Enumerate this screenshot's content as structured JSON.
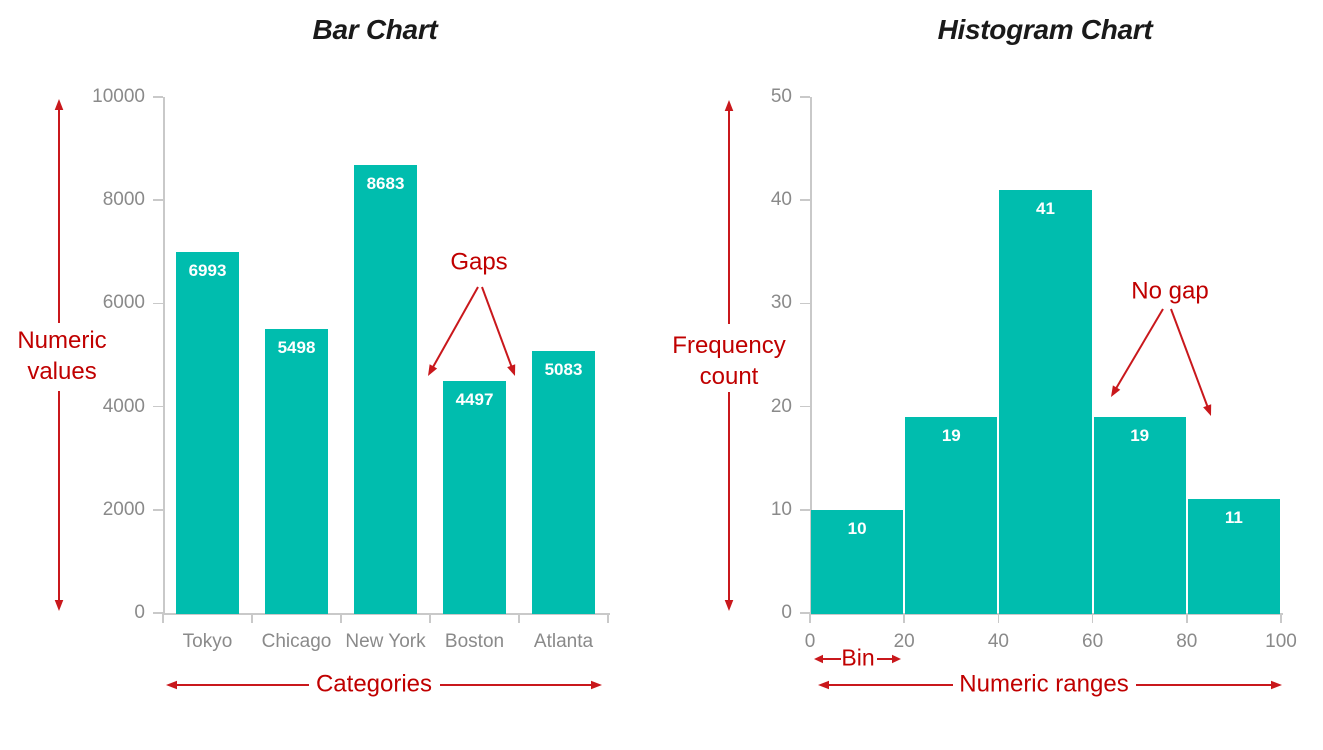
{
  "colors": {
    "background": "#ffffff",
    "bar_fill": "#00bdae",
    "bar_value_label": "#ffffff",
    "axis_line": "#c9c9c9",
    "axis_label": "#8a8a8a",
    "title_text": "#1a1a1a",
    "annotation_text": "#c00000",
    "annotation_arrow": "#c9181c"
  },
  "chart_data": [
    {
      "type": "bar",
      "title": "Bar Chart",
      "categories": [
        "Tokyo",
        "Chicago",
        "New York",
        "Boston",
        "Atlanta"
      ],
      "values": [
        6993,
        5498,
        8683,
        4497,
        5083
      ],
      "ylim": [
        0,
        10000
      ],
      "yticks": [
        0,
        2000,
        4000,
        6000,
        8000,
        10000
      ],
      "grid": false,
      "legend": "none",
      "bar_value_labels": true,
      "annotations": {
        "y_axis_label": "Numeric values",
        "y_axis_label_lines": [
          "Numeric",
          "values"
        ],
        "x_axis_label": "Categories",
        "gaps_label": "Gaps"
      }
    },
    {
      "type": "histogram",
      "title": "Histogram Chart",
      "bin_edges": [
        0,
        20,
        40,
        60,
        80,
        100
      ],
      "counts": [
        10,
        19,
        41,
        19,
        11
      ],
      "xticks": [
        0,
        20,
        40,
        60,
        80,
        100
      ],
      "ylim": [
        0,
        50
      ],
      "yticks": [
        0,
        10,
        20,
        30,
        40,
        50
      ],
      "grid": false,
      "legend": "none",
      "bar_value_labels": true,
      "annotations": {
        "y_axis_label": "Frequency count",
        "y_axis_label_lines": [
          "Frequency",
          "count"
        ],
        "x_axis_label": "Numeric ranges",
        "no_gap_label": "No gap",
        "bin_label": "Bin"
      }
    }
  ]
}
